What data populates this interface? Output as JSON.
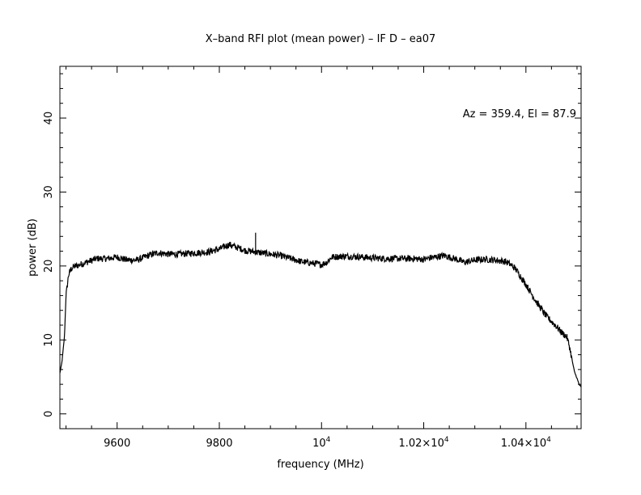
{
  "chart_data": {
    "type": "line",
    "title": "X–band RFI plot (mean power) – IF D – ea07",
    "annotation": "Az = 359.4, El = 87.9",
    "xlabel": "frequency (MHz)",
    "ylabel": "power (dB)",
    "xlim": [
      9488,
      10508
    ],
    "ylim": [
      -2,
      47
    ],
    "x_ticks": [
      {
        "value": 9600,
        "base": "9600",
        "exp": ""
      },
      {
        "value": 9800,
        "base": "9800",
        "exp": ""
      },
      {
        "value": 10000,
        "base": "10",
        "exp": "4"
      },
      {
        "value": 10200,
        "base": "1.02×10",
        "exp": "4"
      },
      {
        "value": 10400,
        "base": "1.04×10",
        "exp": "4"
      }
    ],
    "y_ticks": [
      {
        "value": 0,
        "label": "0"
      },
      {
        "value": 10,
        "label": "10"
      },
      {
        "value": 20,
        "label": "20"
      },
      {
        "value": 30,
        "label": "30"
      },
      {
        "value": 40,
        "label": "40"
      }
    ],
    "grid": false,
    "line_color": "#000000",
    "series": [
      {
        "x": [
          9488,
          9492,
          9497,
          9500,
          9505,
          9510,
          9515,
          9520,
          9540,
          9560,
          9580,
          9600,
          9620,
          9640,
          9660,
          9680,
          9700,
          9720,
          9740,
          9760,
          9780,
          9800,
          9810,
          9820,
          9830,
          9840,
          9850,
          9860,
          9870,
          9880,
          9890,
          9900,
          9920,
          9940,
          9960,
          9980,
          10000,
          10010,
          10020,
          10040,
          10060,
          10080,
          10100,
          10120,
          10140,
          10160,
          10180,
          10200,
          10220,
          10240,
          10260,
          10280,
          10300,
          10320,
          10340,
          10360,
          10370,
          10380,
          10400,
          10420,
          10440,
          10460,
          10470,
          10480,
          10485,
          10490,
          10495,
          10500,
          10504,
          10508
        ],
        "y": [
          5.5,
          7.0,
          10.5,
          16.0,
          18.8,
          19.6,
          19.9,
          20.0,
          20.5,
          21.0,
          21.0,
          21.2,
          20.8,
          20.8,
          21.4,
          21.8,
          21.6,
          21.6,
          21.7,
          21.8,
          21.9,
          22.3,
          22.6,
          22.9,
          22.6,
          22.4,
          22.1,
          22.0,
          21.9,
          21.8,
          21.7,
          21.6,
          21.4,
          21.0,
          20.6,
          20.4,
          20.2,
          20.5,
          21.2,
          21.3,
          21.3,
          21.2,
          21.1,
          21.0,
          21.0,
          21.0,
          21.0,
          20.9,
          21.2,
          21.4,
          21.0,
          20.5,
          20.8,
          20.9,
          20.8,
          20.6,
          20.2,
          19.6,
          17.5,
          15.2,
          13.2,
          11.8,
          11.0,
          10.4,
          9.2,
          7.4,
          5.7,
          4.8,
          4.0,
          3.6
        ],
        "spikes": [
          {
            "x": 9871,
            "y": 24.5
          }
        ]
      }
    ]
  }
}
